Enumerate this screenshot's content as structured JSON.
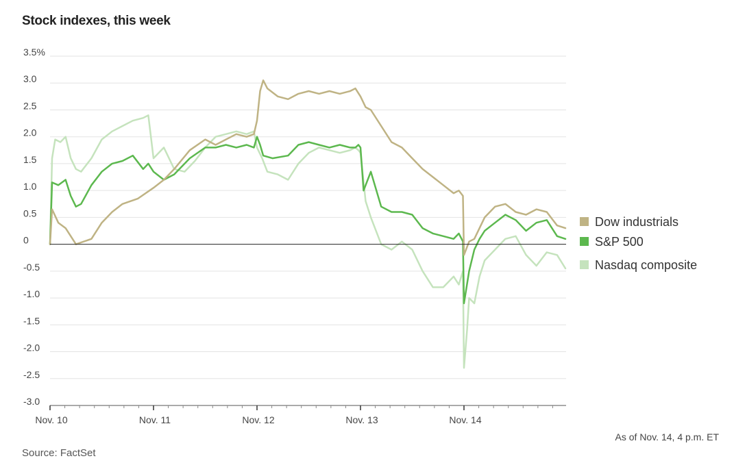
{
  "title": "Stock indexes, this week",
  "footnote": "As of Nov. 14, 4 p.m. ET",
  "source": "Source: FactSet",
  "chart_data": {
    "type": "line",
    "title": "Stock indexes, this week",
    "xlabel": "",
    "ylabel": "",
    "y_unit": "%",
    "ylim": [
      -3.0,
      3.5
    ],
    "yticks": [
      {
        "value": 3.5,
        "label": "3.5%"
      },
      {
        "value": 3.0,
        "label": "3.0"
      },
      {
        "value": 2.5,
        "label": "2.5"
      },
      {
        "value": 2.0,
        "label": "2.0"
      },
      {
        "value": 1.5,
        "label": "1.5"
      },
      {
        "value": 1.0,
        "label": "1.0"
      },
      {
        "value": 0.5,
        "label": "0.5"
      },
      {
        "value": 0,
        "label": "0"
      },
      {
        "value": -0.5,
        "label": "-0.5"
      },
      {
        "value": -1.0,
        "label": "-1.0"
      },
      {
        "value": -1.5,
        "label": "-1.5"
      },
      {
        "value": -2.0,
        "label": "-2.0"
      },
      {
        "value": -2.5,
        "label": "-2.5"
      },
      {
        "value": -3.0,
        "label": "-3.0"
      }
    ],
    "x_days": [
      "Nov. 10",
      "Nov. 11",
      "Nov. 12",
      "Nov. 13",
      "Nov. 14"
    ],
    "grid": true,
    "legend_position": "right",
    "colors": {
      "Dow industrials": "#bfb384",
      "S&P 500": "#5cb84e",
      "Nasdaq composite": "#c5e3bd"
    },
    "series": [
      {
        "name": "Dow industrials",
        "x": [
          0,
          0.02,
          0.08,
          0.15,
          0.25,
          0.4,
          0.5,
          0.6,
          0.7,
          0.85,
          1.0,
          1.1,
          1.2,
          1.35,
          1.5,
          1.6,
          1.7,
          1.8,
          1.9,
          1.97,
          2.0,
          2.03,
          2.06,
          2.1,
          2.2,
          2.3,
          2.4,
          2.5,
          2.6,
          2.7,
          2.8,
          2.9,
          2.95,
          3.0,
          3.05,
          3.1,
          3.2,
          3.3,
          3.4,
          3.5,
          3.6,
          3.7,
          3.8,
          3.9,
          3.95,
          3.99,
          4.0,
          4.05,
          4.1,
          4.2,
          4.3,
          4.4,
          4.5,
          4.6,
          4.7,
          4.8,
          4.9,
          4.98
        ],
        "y": [
          0.0,
          0.65,
          0.4,
          0.3,
          0.0,
          0.1,
          0.4,
          0.6,
          0.75,
          0.85,
          1.05,
          1.2,
          1.4,
          1.75,
          1.95,
          1.85,
          1.95,
          2.05,
          2.0,
          2.05,
          2.3,
          2.85,
          3.05,
          2.9,
          2.75,
          2.7,
          2.8,
          2.85,
          2.8,
          2.85,
          2.8,
          2.85,
          2.9,
          2.75,
          2.55,
          2.5,
          2.2,
          1.9,
          1.8,
          1.6,
          1.4,
          1.25,
          1.1,
          0.95,
          1.0,
          0.9,
          -0.2,
          0.05,
          0.1,
          0.5,
          0.7,
          0.75,
          0.6,
          0.55,
          0.65,
          0.6,
          0.35,
          0.3
        ]
      },
      {
        "name": "S&P 500",
        "x": [
          0,
          0.02,
          0.08,
          0.15,
          0.2,
          0.25,
          0.3,
          0.4,
          0.5,
          0.6,
          0.7,
          0.8,
          0.9,
          0.95,
          1.0,
          1.1,
          1.2,
          1.35,
          1.5,
          1.6,
          1.7,
          1.8,
          1.9,
          1.97,
          2.0,
          2.03,
          2.06,
          2.15,
          2.3,
          2.4,
          2.5,
          2.6,
          2.7,
          2.8,
          2.9,
          2.95,
          2.98,
          3.0,
          3.03,
          3.1,
          3.2,
          3.3,
          3.4,
          3.5,
          3.6,
          3.7,
          3.8,
          3.9,
          3.95,
          3.99,
          4.0,
          4.05,
          4.1,
          4.15,
          4.2,
          4.3,
          4.4,
          4.5,
          4.6,
          4.7,
          4.8,
          4.9,
          4.98
        ],
        "y": [
          0.0,
          1.15,
          1.1,
          1.2,
          0.9,
          0.7,
          0.75,
          1.1,
          1.35,
          1.5,
          1.55,
          1.65,
          1.4,
          1.5,
          1.35,
          1.2,
          1.3,
          1.6,
          1.8,
          1.8,
          1.85,
          1.8,
          1.85,
          1.8,
          2.0,
          1.85,
          1.65,
          1.6,
          1.65,
          1.85,
          1.9,
          1.85,
          1.8,
          1.85,
          1.8,
          1.8,
          1.85,
          1.8,
          1.0,
          1.35,
          0.7,
          0.6,
          0.6,
          0.55,
          0.3,
          0.2,
          0.15,
          0.1,
          0.2,
          0.05,
          -1.1,
          -0.5,
          -0.1,
          0.1,
          0.25,
          0.4,
          0.55,
          0.45,
          0.25,
          0.4,
          0.45,
          0.15,
          0.1
        ]
      },
      {
        "name": "Nasdaq composite",
        "x": [
          0,
          0.02,
          0.05,
          0.1,
          0.15,
          0.2,
          0.25,
          0.3,
          0.4,
          0.5,
          0.6,
          0.7,
          0.8,
          0.9,
          0.95,
          1.0,
          1.1,
          1.2,
          1.3,
          1.4,
          1.5,
          1.6,
          1.7,
          1.8,
          1.9,
          1.97,
          2.0,
          2.05,
          2.1,
          2.2,
          2.3,
          2.4,
          2.5,
          2.6,
          2.7,
          2.8,
          2.9,
          2.95,
          2.98,
          3.0,
          3.05,
          3.1,
          3.2,
          3.3,
          3.4,
          3.5,
          3.6,
          3.7,
          3.8,
          3.9,
          3.95,
          3.99,
          4.0,
          4.03,
          4.05,
          4.1,
          4.15,
          4.2,
          4.3,
          4.4,
          4.5,
          4.6,
          4.7,
          4.8,
          4.9,
          4.98
        ],
        "y": [
          0.0,
          1.6,
          1.95,
          1.9,
          2.0,
          1.6,
          1.4,
          1.35,
          1.6,
          1.95,
          2.1,
          2.2,
          2.3,
          2.35,
          2.4,
          1.6,
          1.8,
          1.4,
          1.35,
          1.55,
          1.8,
          2.0,
          2.05,
          2.1,
          2.05,
          2.1,
          1.8,
          1.6,
          1.35,
          1.3,
          1.2,
          1.5,
          1.7,
          1.8,
          1.75,
          1.7,
          1.75,
          1.8,
          1.75,
          1.7,
          0.8,
          0.5,
          0.0,
          -0.1,
          0.05,
          -0.1,
          -0.5,
          -0.8,
          -0.8,
          -0.6,
          -0.75,
          -0.5,
          -2.3,
          -1.6,
          -1.0,
          -1.1,
          -0.6,
          -0.3,
          -0.1,
          0.1,
          0.15,
          -0.2,
          -0.4,
          -0.15,
          -0.2,
          -0.45
        ]
      }
    ]
  }
}
